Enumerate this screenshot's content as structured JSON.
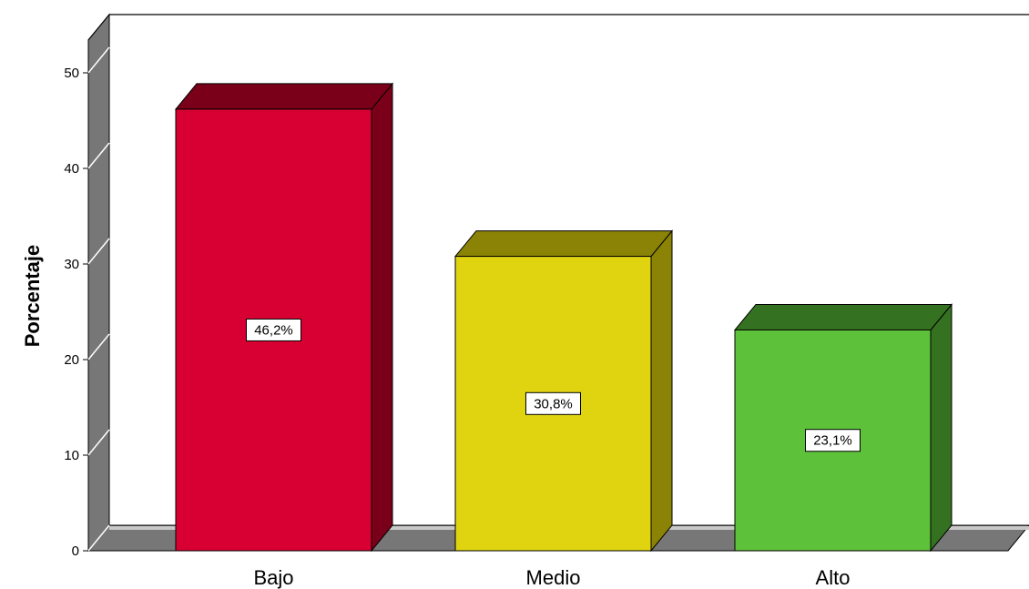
{
  "chart_data": {
    "type": "bar",
    "style": "3d",
    "title": "",
    "xlabel": "",
    "ylabel": "Porcentaje",
    "ylim": [
      0,
      50
    ],
    "yticks": [
      "0",
      "10",
      "20",
      "30",
      "40",
      "50"
    ],
    "categories": [
      "Bajo",
      "Medio",
      "Alto"
    ],
    "values": [
      46.2,
      30.8,
      23.1
    ],
    "data_labels": [
      "46,2%",
      "30,8%",
      "23,1%"
    ],
    "colors": [
      {
        "front": "#d80032",
        "side": "#7a0019"
      },
      {
        "front": "#e0d411",
        "side": "#8a8305"
      },
      {
        "front": "#5dc23a",
        "side": "#347120"
      }
    ],
    "wall_color": "#777777",
    "grid": false,
    "legend": "none"
  }
}
